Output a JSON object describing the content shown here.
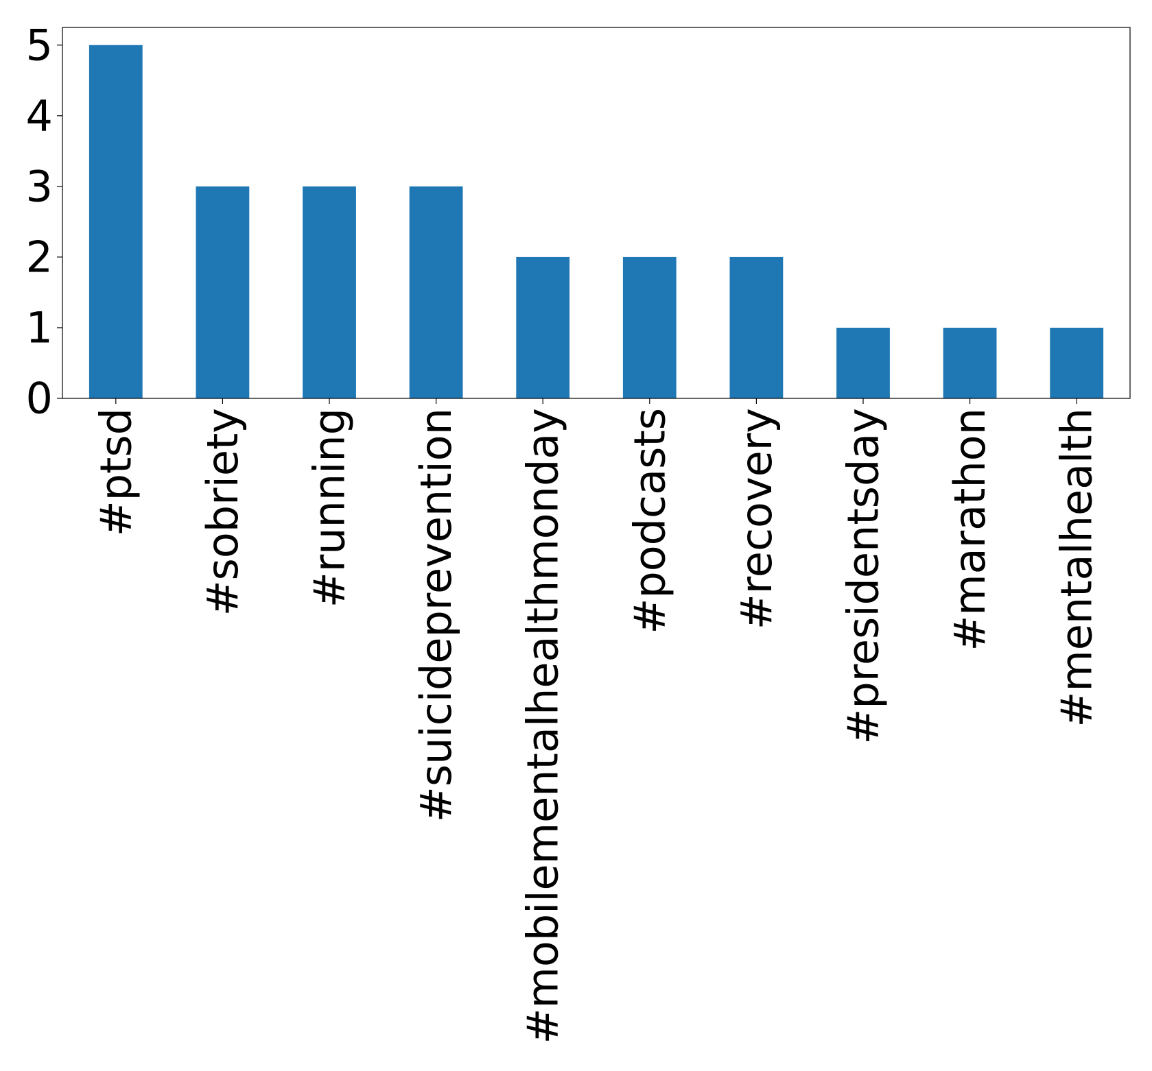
{
  "chart_data": {
    "type": "bar",
    "categories": [
      "#ptsd",
      "#sobriety",
      "#running",
      "#suicideprevention",
      "#mobilementalhealthmonday",
      "#podcasts",
      "#recovery",
      "#presidentsday",
      "#marathon",
      "#mentalhealth"
    ],
    "values": [
      5,
      3,
      3,
      3,
      2,
      2,
      2,
      1,
      1,
      1
    ],
    "ylim": [
      0,
      5.25
    ],
    "yticks": [
      "0",
      "1",
      "2",
      "3",
      "4",
      "5"
    ],
    "grid": false,
    "colors": {
      "bar": "#1f77b4"
    }
  }
}
